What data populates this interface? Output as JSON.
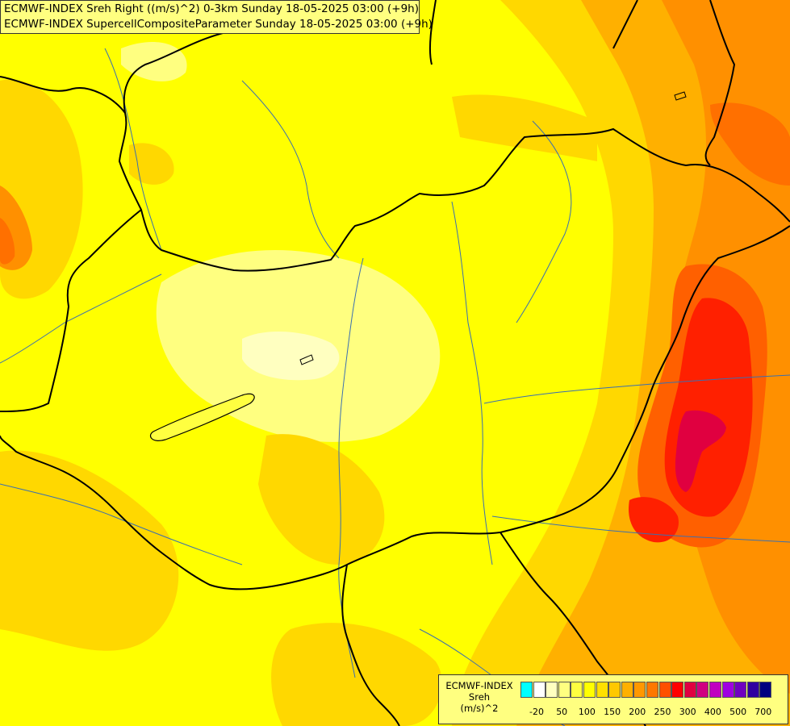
{
  "header": {
    "line1": "ECMWF-INDEX Sreh Right ((m/s)^2) 0-3km Sunday 18-05-2025 03:00 (+9h)",
    "line2": "ECMWF-INDEX SupercellCompositeParameter Sunday 18-05-2025 03:00 (+9h)"
  },
  "legend": {
    "title_line1": "ECMWF-INDEX",
    "title_line2": "Sreh",
    "title_line3": "(m/s)^2",
    "colors": [
      "#00ffff",
      "#ffffff",
      "#ffffc0",
      "#ffff80",
      "#ffff40",
      "#ffff00",
      "#ffe000",
      "#ffc800",
      "#ffb000",
      "#ff9800",
      "#ff7800",
      "#ff5000",
      "#ff0000",
      "#e00040",
      "#d00080",
      "#c000c0",
      "#a000e0",
      "#7000c0",
      "#3000a0",
      "#000080"
    ],
    "labels": [
      "-20",
      "50",
      "100",
      "150",
      "200",
      "250",
      "300",
      "400",
      "500",
      "700"
    ]
  },
  "map": {
    "colors": {
      "background": "#ffff00",
      "pale": "#ffff80",
      "very_pale": "#ffffc0",
      "light_orange": "#ffd800",
      "orange": "#ffb000",
      "dark_orange": "#ff9000",
      "red_orange": "#ff6000",
      "red": "#ff2000",
      "magenta": "#e00040",
      "border": "#000000",
      "river": "#3a6fb0"
    }
  }
}
